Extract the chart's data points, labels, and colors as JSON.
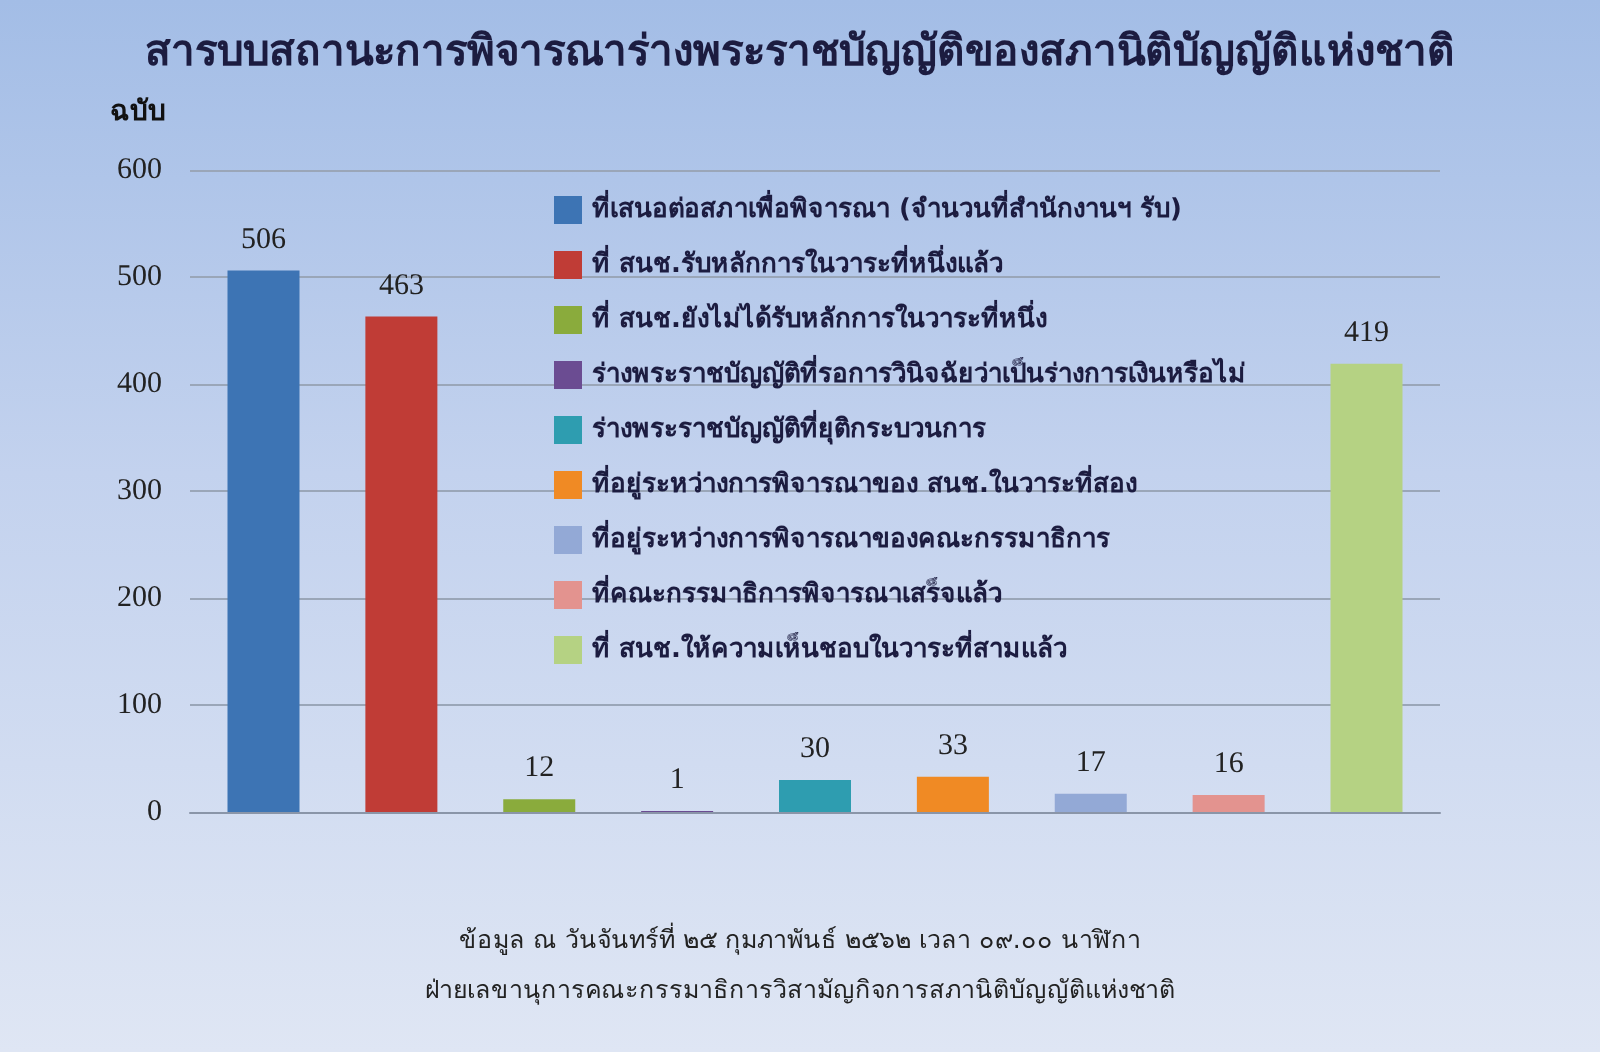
{
  "chart_data": {
    "type": "bar",
    "title": "สารบบสถานะการพิจารณาร่างพระราชบัญญัติของสภานิติบัญญัติแห่งชาติ",
    "ylabel": "ฉบับ",
    "categories": [
      null
    ],
    "series": [
      {
        "name": "ที่เสนอต่อสภาเพื่อพิจารณา (จำนวนที่สำนักงานฯ รับ)",
        "color": "#3d74b4",
        "values": [
          506
        ]
      },
      {
        "name": "ที่ สนช.รับหลักการในวาระที่หนึ่งแล้ว",
        "color": "#c03c36",
        "values": [
          463
        ]
      },
      {
        "name": "ที่ สนช.ยังไม่ได้รับหลักการในวาระที่หนึ่ง",
        "color": "#8aab3c",
        "values": [
          12
        ]
      },
      {
        "name": "ร่างพระราชบัญญัติที่รอการวินิจฉัยว่าเป็นร่างการเงินหรือไม่",
        "color": "#6b4c92",
        "values": [
          1
        ]
      },
      {
        "name": "ร่างพระราชบัญญัติที่ยุติกระบวนการ",
        "color": "#2e9db0",
        "values": [
          30
        ]
      },
      {
        "name": "ที่อยู่ระหว่างการพิจารณาของ สนช.ในวาระที่สอง",
        "color": "#f08a24",
        "values": [
          33
        ]
      },
      {
        "name": "ที่อยู่ระหว่างการพิจารณาของคณะกรรมาธิการ",
        "color": "#93a9d6",
        "values": [
          17
        ]
      },
      {
        "name": "ที่คณะกรรมาธิการพิจารณาเสร็จแล้ว",
        "color": "#e3938f",
        "values": [
          16
        ]
      },
      {
        "name": "ที่ สนช.ให้ความเห็นชอบในวาระที่สามแล้ว",
        "color": "#b5d283",
        "values": [
          419
        ]
      }
    ],
    "ylim": [
      0,
      600
    ],
    "yticks": [
      0,
      100,
      200,
      300,
      400,
      500,
      600
    ],
    "grid": "y",
    "legend": "top",
    "data_labels": true,
    "annotations": [
      "ข้อมูล ณ วันจันทร์ที่ ๒๕ กุมภาพันธ์ ๒๕๖๒ เวลา ๐๙.๐๐ นาฬิกา",
      "ฝ่ายเลขานุการคณะกรรมาธิการวิสามัญกิจการสภานิติบัญญัติแห่งชาติ"
    ]
  }
}
